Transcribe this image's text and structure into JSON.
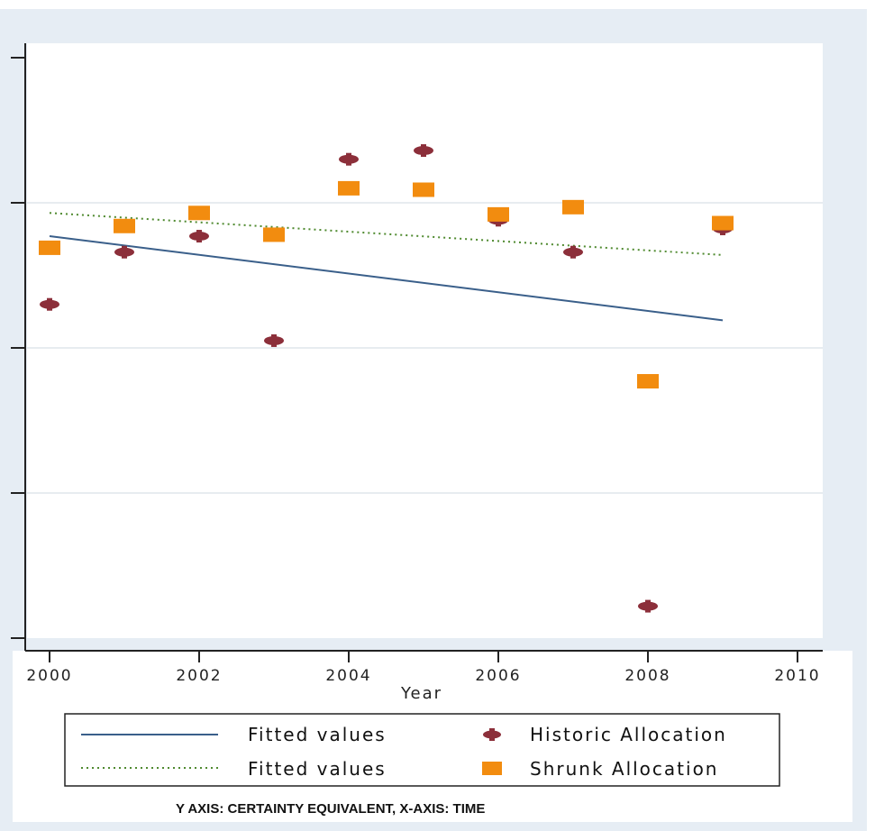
{
  "chart_data": {
    "type": "scatter",
    "xlabel": "Year",
    "ylabel": "",
    "xlim": [
      2000,
      2010
    ],
    "ylim": [
      0,
      4
    ],
    "x_ticks": [
      "2000",
      "2002",
      "2004",
      "2006",
      "2008",
      "2010"
    ],
    "y_ticks": [
      0,
      1,
      2,
      3,
      4
    ],
    "y_tick_labels_shown": false,
    "grid": "horizontal",
    "legend_position": "bottom",
    "series": [
      {
        "name": "Historic Allocation",
        "kind": "scatter",
        "marker": "plus",
        "color": "#8c2f3a",
        "x": [
          2000,
          2001,
          2002,
          2003,
          2004,
          2005,
          2006,
          2007,
          2008,
          2009
        ],
        "y": [
          2.3,
          2.66,
          2.77,
          2.05,
          3.3,
          3.36,
          2.88,
          2.66,
          0.22,
          2.82
        ]
      },
      {
        "name": "Shrunk Allocation",
        "kind": "scatter",
        "marker": "square",
        "color": "#f28c0f",
        "x": [
          2000,
          2001,
          2002,
          2003,
          2004,
          2005,
          2006,
          2007,
          2008,
          2009
        ],
        "y": [
          2.69,
          2.84,
          2.93,
          2.78,
          3.1,
          3.09,
          2.92,
          2.97,
          1.77,
          2.86
        ]
      },
      {
        "name": "Fitted values",
        "kind": "line",
        "style": "solid",
        "color": "#3a5f8a",
        "x": [
          2000,
          2009
        ],
        "y": [
          2.77,
          2.19
        ]
      },
      {
        "name": "Fitted values",
        "kind": "line",
        "style": "dotted",
        "color": "#4f8a2f",
        "x": [
          2000,
          2009
        ],
        "y": [
          2.93,
          2.64
        ]
      }
    ]
  },
  "legend": {
    "items": [
      {
        "label": "Fitted values",
        "symbol": "solid-line"
      },
      {
        "label": "Historic Allocation",
        "symbol": "plus"
      },
      {
        "label": "Fitted values",
        "symbol": "dotted-line"
      },
      {
        "label": "Shrunk Allocation",
        "symbol": "square"
      }
    ]
  },
  "caption": "Y AXIS: CERTAINTY EQUIVALENT, X-AXIS: TIME"
}
